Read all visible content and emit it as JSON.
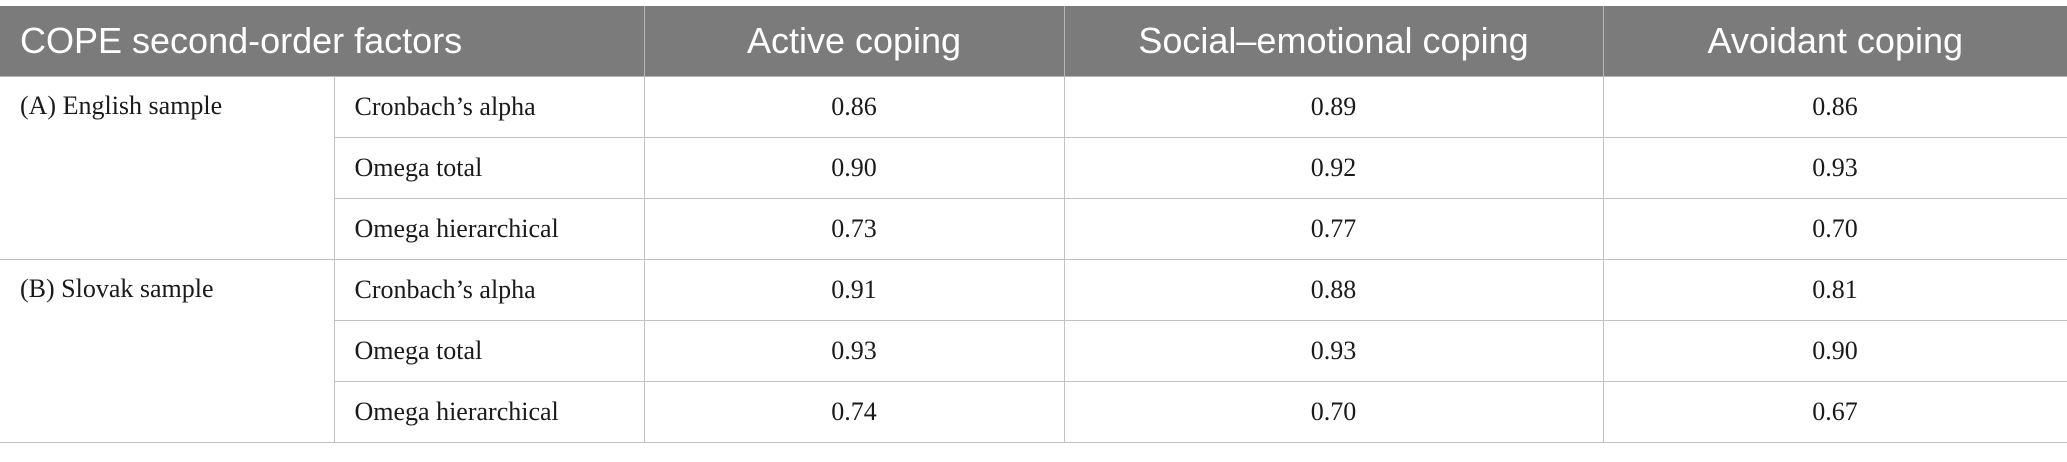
{
  "table": {
    "headers": [
      "COPE second-order factors",
      "Active coping",
      "Social–emotional coping",
      "Avoidant coping"
    ],
    "groups": [
      {
        "label": "(A) English sample",
        "rows": [
          {
            "metric": "Cronbach’s alpha",
            "values": [
              "0.86",
              "0.89",
              "0.86"
            ]
          },
          {
            "metric": "Omega total",
            "values": [
              "0.90",
              "0.92",
              "0.93"
            ]
          },
          {
            "metric": "Omega hierarchical",
            "values": [
              "0.73",
              "0.77",
              "0.70"
            ]
          }
        ]
      },
      {
        "label": "(B) Slovak sample",
        "rows": [
          {
            "metric": "Cronbach’s alpha",
            "values": [
              "0.91",
              "0.88",
              "0.81"
            ]
          },
          {
            "metric": "Omega total",
            "values": [
              "0.93",
              "0.93",
              "0.90"
            ]
          },
          {
            "metric": "Omega hierarchical",
            "values": [
              "0.74",
              "0.70",
              "0.67"
            ]
          }
        ]
      }
    ],
    "colors": {
      "header_bg": "#7b7b7b",
      "header_text": "#ffffff",
      "grid": "#c2c2c2"
    }
  }
}
